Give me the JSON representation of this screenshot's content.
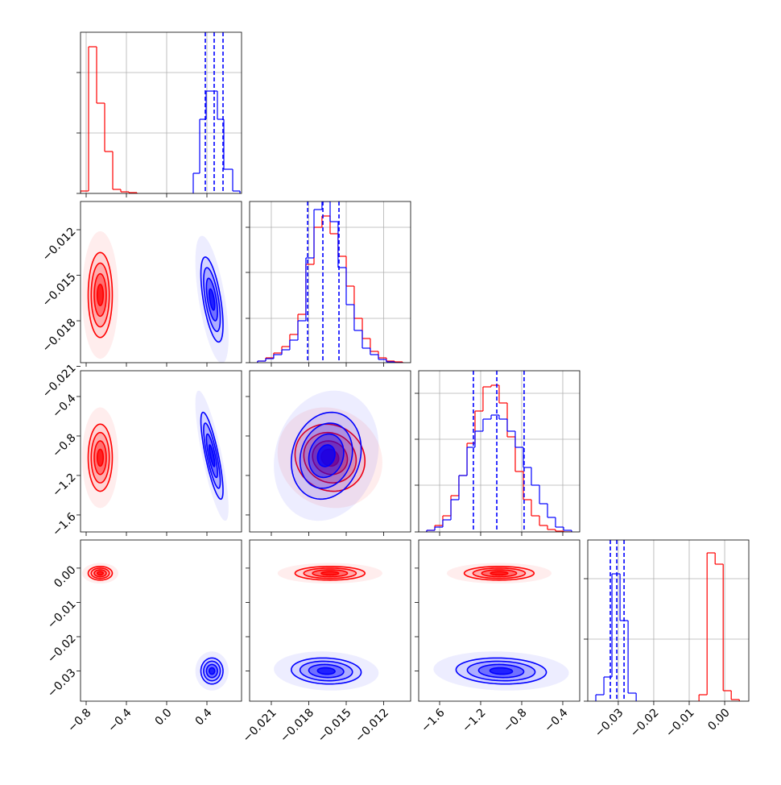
{
  "chart_data": {
    "type": "corner",
    "params": [
      {
        "xlim": [
          -0.856,
          0.744
        ],
        "xticks": [
          {
            "value": -0.8,
            "label": "−0.8"
          },
          {
            "value": -0.4,
            "label": "−0.4"
          },
          {
            "value": 0,
            "label": "0.0"
          },
          0.4
        ],
        "hist_ylim": [
          0,
          200
        ],
        "hist_yticks": [
          0,
          75,
          150
        ]
      },
      {
        "xlim": [
          -0.02274,
          -0.00984
        ],
        "xticks": [
          {
            "value": -0.021,
            "label": "−0.021"
          },
          {
            "value": -0.018,
            "label": "−0.018"
          },
          {
            "value": -0.015,
            "label": "−0.015"
          },
          {
            "value": -0.012,
            "label": "−0.012"
          }
        ],
        "ylim": [
          -0.02076,
          -0.01014
        ],
        "yticks": [
          {
            "value": -0.021,
            "label": "−0.021"
          },
          {
            "value": -0.018,
            "label": "−0.018"
          },
          {
            "value": -0.015,
            "label": "−0.015"
          },
          {
            "value": -0.012,
            "label": "−0.012"
          }
        ],
        "hist_ylim": [
          0,
          200
        ],
        "hist_yticks": [
          0,
          55,
          112,
          168
        ]
      },
      {
        "xlim": [
          -1.804,
          -0.235
        ],
        "xticks": [
          {
            "value": -1.6,
            "label": "−1.6"
          },
          {
            "value": -1.2,
            "label": "−1.2"
          },
          {
            "value": -0.8,
            "label": "−0.8"
          },
          {
            "value": -0.4,
            "label": "−0.4"
          }
        ],
        "ylim": [
          -1.772,
          -0.139
        ],
        "yticks": [
          {
            "value": -1.6,
            "label": "−1.6"
          },
          {
            "value": -1.2,
            "label": "−1.2"
          },
          {
            "value": -0.8,
            "label": "−0.8"
          },
          {
            "value": -0.4,
            "label": "−0.4"
          }
        ],
        "hist_ylim": [
          0,
          200
        ],
        "hist_yticks": [
          0,
          58,
          115,
          172
        ]
      },
      {
        "xlim": [
          -0.0386,
          0.0068
        ],
        "xticks": [
          {
            "value": -0.03,
            "label": "−0.03"
          },
          {
            "value": -0.02,
            "label": "−0.02"
          },
          {
            "value": -0.01,
            "label": "−0.01"
          },
          {
            "value": 0,
            "label": "0.00"
          }
        ],
        "ylim": [
          -0.0388,
          0.0082
        ],
        "yticks": [
          {
            "value": -0.03,
            "label": "−0.03"
          },
          {
            "value": -0.02,
            "label": "−0.02"
          },
          {
            "value": -0.01,
            "label": "−0.01"
          },
          {
            "value": 0,
            "label": "0.00"
          }
        ],
        "hist_ylim": [
          0,
          200
        ],
        "hist_yticks": [
          0,
          77,
          152
        ]
      }
    ],
    "grid": true,
    "series": [
      {
        "color": "#ff0000",
        "means": [
          -0.66,
          -0.0163,
          -1.02,
          -0.0015
        ],
        "sds": [
          0.06,
          0.0014,
          0.17,
          0.001
        ],
        "corr": [
          [
            0
          ],
          [
            0,
            -0.1
          ],
          [
            0,
            0,
            0
          ]
        ],
        "hists": [
          {
            "bins": [
              -0.856,
              -0.776,
              -0.696,
              -0.616,
              -0.536,
              -0.456,
              -0.376,
              -0.296
            ],
            "counts": [
              3,
              182,
              112,
              52,
              5,
              2,
              1
            ]
          },
          {
            "bins": [
              -0.0221,
              -0.02145,
              -0.02081,
              -0.02016,
              -0.01952,
              -0.01887,
              -0.01823,
              -0.01758,
              -0.01694,
              -0.01629,
              -0.01565,
              -0.015,
              -0.01436,
              -0.01371,
              -0.01307,
              -0.01242,
              -0.01178,
              -0.01113,
              -0.01049
            ],
            "counts": [
              2,
              6,
              12,
              20,
              35,
              60,
              122,
              168,
              182,
              160,
              132,
              95,
              55,
              30,
              14,
              6,
              2,
              1
            ]
          },
          {
            "bins": [
              -1.726,
              -1.647,
              -1.569,
              -1.49,
              -1.412,
              -1.333,
              -1.255,
              -1.177,
              -1.098,
              -1.02,
              -0.941,
              -0.863,
              -0.784,
              -0.706,
              -0.627,
              -0.549,
              -0.471,
              -0.392,
              -0.314
            ],
            "counts": [
              2,
              8,
              20,
              45,
              70,
              110,
              150,
              180,
              182,
              160,
              118,
              75,
              40,
              20,
              8,
              3,
              1,
              0
            ]
          },
          {
            "bins": [
              -0.00724,
              -0.00496,
              -0.00269,
              -0.00042,
              0.00185,
              0.00413
            ],
            "counts": [
              8,
              184,
              170,
              13,
              2
            ]
          }
        ]
      },
      {
        "color": "#0000ff",
        "means": [
          0.45,
          -0.0166,
          -1.0,
          -0.03
        ],
        "sds": [
          0.055,
          0.0014,
          0.22,
          0.0019
        ],
        "corr": [
          [
            -0.6
          ],
          [
            -0.8,
            0.15
          ],
          [
            0,
            -0.1,
            -0.1
          ]
        ],
        "hists": [
          {
            "bins": [
              0.264,
              0.328,
              0.392,
              0.448,
              0.504,
              0.568,
              0.656,
              0.728
            ],
            "counts": [
              25,
              92,
              127,
              127,
              92,
              30,
              3
            ]
          },
          {
            "bins": [
              -0.0221,
              -0.02145,
              -0.02081,
              -0.02016,
              -0.01952,
              -0.01887,
              -0.01823,
              -0.01758,
              -0.01694,
              -0.01629,
              -0.01565,
              -0.015,
              -0.01436,
              -0.01371,
              -0.01307,
              -0.01242,
              -0.01178,
              -0.01113,
              -0.01049
            ],
            "counts": [
              2,
              5,
              10,
              16,
              28,
              52,
              130,
              190,
              200,
              175,
              118,
              72,
              40,
              18,
              10,
              4,
              1,
              0
            ]
          },
          {
            "bins": [
              -1.726,
              -1.647,
              -1.569,
              -1.49,
              -1.412,
              -1.333,
              -1.255,
              -1.177,
              -1.098,
              -1.02,
              -0.941,
              -0.863,
              -0.784,
              -0.706,
              -0.627,
              -0.549,
              -0.471,
              -0.392,
              -0.314
            ],
            "counts": [
              2,
              6,
              15,
              40,
              70,
              105,
              125,
              140,
              145,
              140,
              125,
              105,
              80,
              58,
              35,
              18,
              6,
              2
            ]
          },
          {
            "bins": [
              -0.03633,
              -0.03405,
              -0.03178,
              -0.0295,
              -0.02723,
              -0.02495
            ],
            "counts": [
              8,
              30,
              158,
              100,
              10
            ]
          }
        ],
        "quantiles": [
          [
            0.384,
            0.472,
            0.56
          ],
          [
            -0.01809,
            -0.01687,
            -0.01558
          ],
          [
            -1.271,
            -1.043,
            -0.777
          ],
          [
            -0.03224,
            -0.03042,
            -0.02837
          ]
        ]
      }
    ]
  }
}
